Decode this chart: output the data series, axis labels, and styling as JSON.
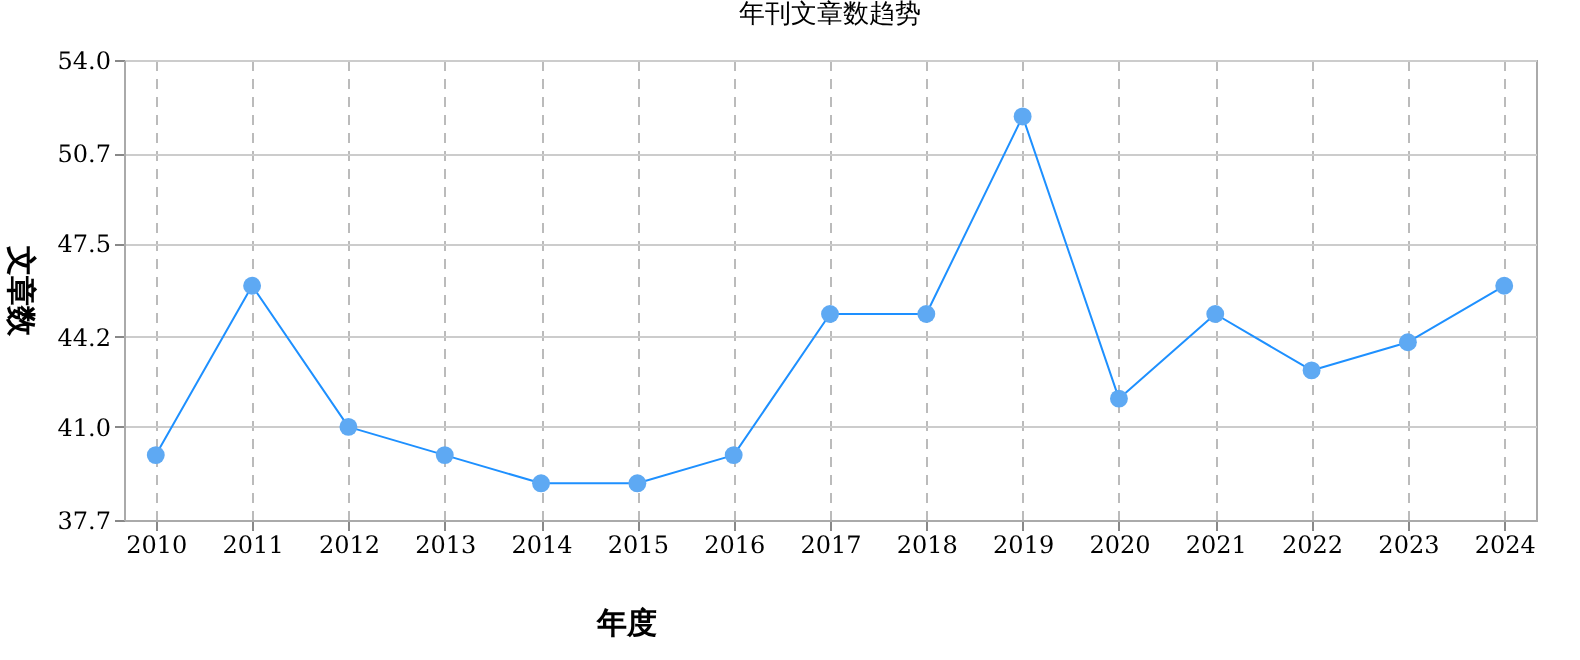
{
  "chart_data": {
    "type": "line",
    "title": "年刊文章数趋势",
    "xlabel": "年度",
    "ylabel": "文章数",
    "categories": [
      "2010",
      "2011",
      "2012",
      "2013",
      "2014",
      "2015",
      "2016",
      "2017",
      "2018",
      "2019",
      "2020",
      "2021",
      "2022",
      "2023",
      "2024"
    ],
    "series": [
      {
        "color": "#1e90ff",
        "values": [
          40,
          46,
          41,
          40,
          39,
          39,
          40,
          45,
          45,
          52,
          42,
          45,
          43,
          44,
          46
        ]
      }
    ],
    "ylim": [
      37.7,
      54.0
    ],
    "yticks": [
      37.7,
      {
        "value": 41.0,
        "label": "41.0"
      },
      44.2,
      47.5,
      50.7,
      {
        "value": 54.0,
        "label": "54.0"
      }
    ],
    "grid": true,
    "marker": "circle",
    "line_style": "solid"
  }
}
